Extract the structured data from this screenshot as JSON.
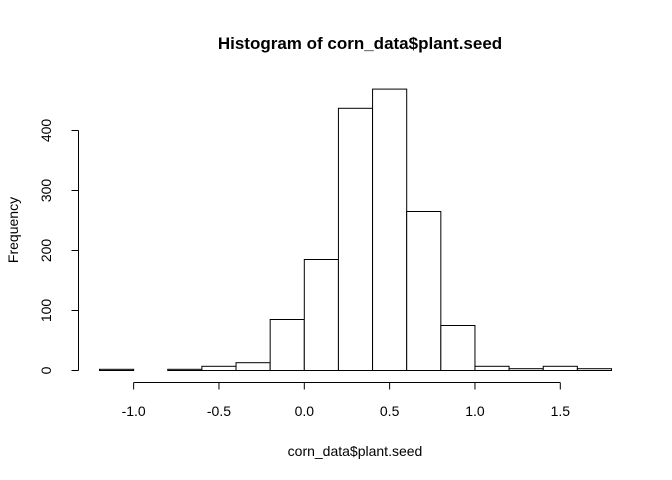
{
  "chart_data": {
    "type": "bar",
    "title": "Histogram of corn_data$plant.seed",
    "xlabel": "corn_data$plant.seed",
    "ylabel": "Frequency",
    "bins": [
      {
        "start": -1.2,
        "end": -1.0,
        "count": 2
      },
      {
        "start": -1.0,
        "end": -0.8,
        "count": 0
      },
      {
        "start": -0.8,
        "end": -0.6,
        "count": 2
      },
      {
        "start": -0.6,
        "end": -0.4,
        "count": 7
      },
      {
        "start": -0.4,
        "end": -0.2,
        "count": 13
      },
      {
        "start": -0.2,
        "end": 0.0,
        "count": 85
      },
      {
        "start": 0.0,
        "end": 0.2,
        "count": 185
      },
      {
        "start": 0.2,
        "end": 0.4,
        "count": 437
      },
      {
        "start": 0.4,
        "end": 0.6,
        "count": 469
      },
      {
        "start": 0.6,
        "end": 0.8,
        "count": 265
      },
      {
        "start": 0.8,
        "end": 1.0,
        "count": 75
      },
      {
        "start": 1.0,
        "end": 1.2,
        "count": 7
      },
      {
        "start": 1.2,
        "end": 1.4,
        "count": 3
      },
      {
        "start": 1.4,
        "end": 1.6,
        "count": 7
      },
      {
        "start": 1.6,
        "end": 1.8,
        "count": 3
      }
    ],
    "xlim": [
      -1.2,
      1.8
    ],
    "ylim": [
      0,
      480
    ],
    "x_ticks": [
      {
        "value": -1.0,
        "label": "-1.0"
      },
      {
        "value": -0.5,
        "label": "-0.5"
      },
      {
        "value": 0.0,
        "label": "0.0"
      },
      {
        "value": 0.5,
        "label": "0.5"
      },
      {
        "value": 1.0,
        "label": "1.0"
      },
      {
        "value": 1.5,
        "label": "1.5"
      }
    ],
    "y_ticks": [
      {
        "value": 0,
        "label": "0"
      },
      {
        "value": 100,
        "label": "100"
      },
      {
        "value": 200,
        "label": "200"
      },
      {
        "value": 300,
        "label": "300"
      },
      {
        "value": 400,
        "label": "400"
      }
    ],
    "grid": false,
    "bar_fill": "#ffffff",
    "bar_stroke": "#000000"
  }
}
